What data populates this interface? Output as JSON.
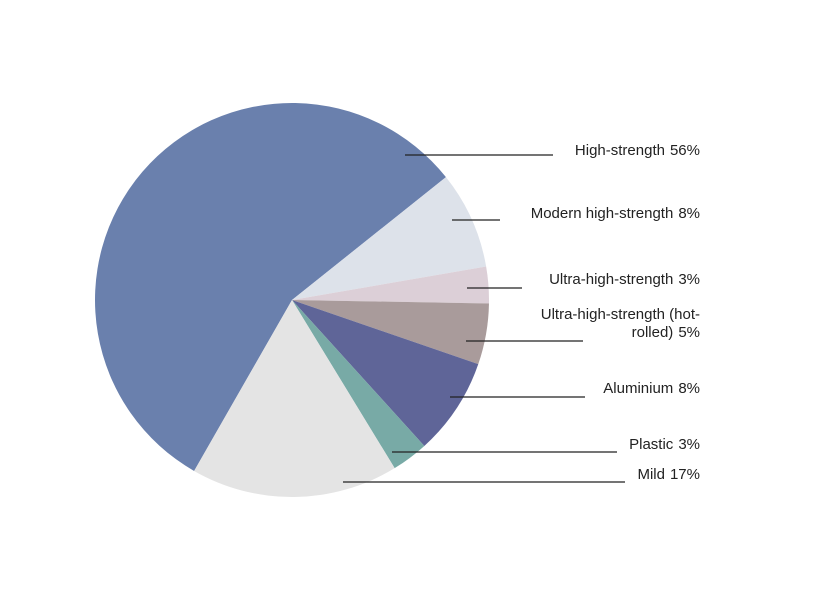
{
  "chart_data": {
    "type": "pie",
    "categories": [
      "High-strength",
      "Modern high-strength",
      "Ultra-high-strength",
      "Ultra-high-strength (hot-rolled)",
      "Aluminium",
      "Plastic",
      "Mild"
    ],
    "values": [
      56,
      8,
      3,
      5,
      8,
      3,
      17
    ],
    "value_labels": [
      "56%",
      "8%",
      "3%",
      "5%",
      "8%",
      "3%",
      "17%"
    ],
    "colors": [
      "#6a80ad",
      "#dde2ea",
      "#dccfd7",
      "#a99b9b",
      "#5f6598",
      "#78aaa6",
      "#e4e4e4"
    ]
  }
}
